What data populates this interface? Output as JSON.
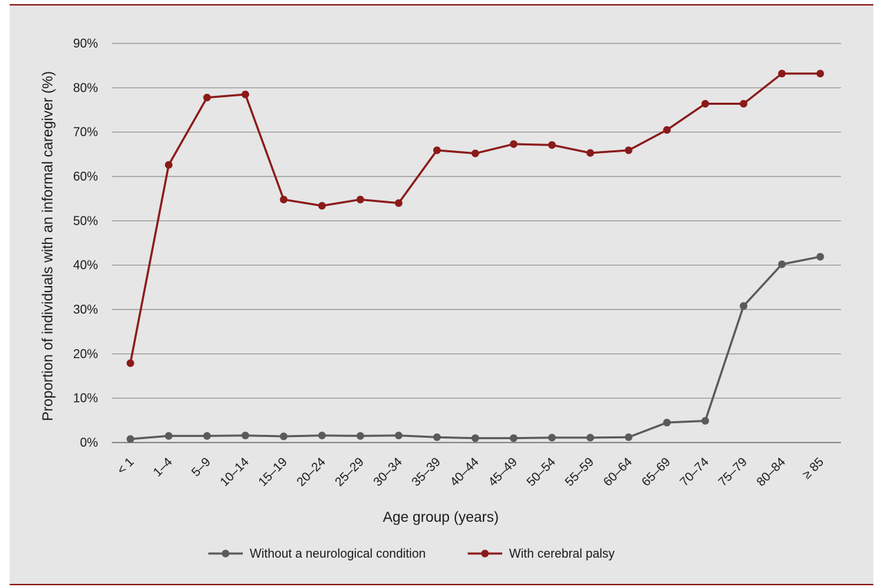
{
  "chart_data": {
    "type": "line",
    "title": "",
    "xlabel": "Age group (years)",
    "ylabel": "Proportion of individuals with an informal caregiver (%)",
    "ylim": [
      0,
      90
    ],
    "y_ticks": [
      "0%",
      "10%",
      "20%",
      "30%",
      "40%",
      "50%",
      "60%",
      "70%",
      "80%",
      "90%"
    ],
    "grid": "horizontal",
    "legend_position": "bottom",
    "categories": [
      "< 1",
      "1–4",
      "5–9",
      "10–14",
      "15–19",
      "20–24",
      "25–29",
      "30–34",
      "35–39",
      "40–44",
      "45–49",
      "50–54",
      "55–59",
      "60–64",
      "65–69",
      "70–74",
      "75–79",
      "80–84",
      "≥ 85"
    ],
    "series": [
      {
        "name": "Without a neurological condition",
        "color": "#5a5a5a",
        "values": [
          0.8,
          1.5,
          1.5,
          1.6,
          1.4,
          1.6,
          1.5,
          1.6,
          1.2,
          1.0,
          1.0,
          1.1,
          1.1,
          1.2,
          4.5,
          4.9,
          30.8,
          40.2,
          41.9
        ]
      },
      {
        "name": "With cerebral palsy",
        "color": "#8b1a1a",
        "values": [
          17.9,
          62.6,
          77.8,
          78.5,
          54.8,
          53.4,
          54.8,
          54.0,
          65.9,
          65.2,
          67.3,
          67.1,
          65.3,
          65.9,
          70.5,
          76.4,
          76.4,
          83.2,
          83.2
        ]
      }
    ]
  }
}
